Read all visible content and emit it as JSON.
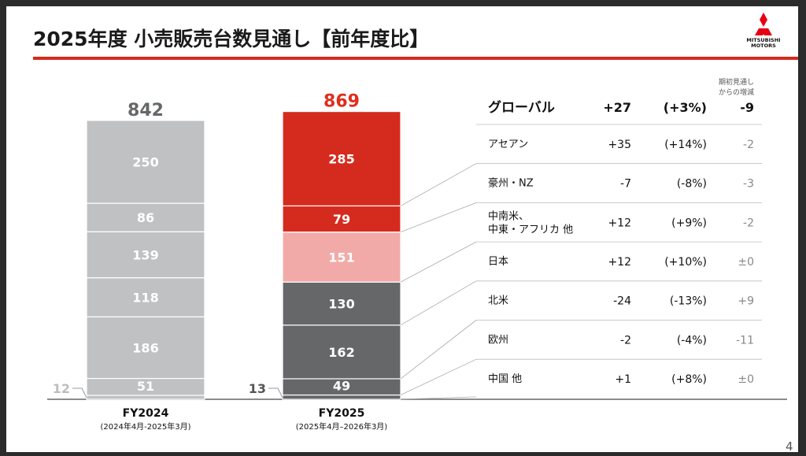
{
  "slide": {
    "title": "2025年度 小売販売台数見通し【前年度比】",
    "page_number": "4",
    "logo": {
      "line1": "MITSUBISHI",
      "line2": "MOTORS"
    }
  },
  "colors": {
    "accent": "#d52b1e",
    "fy2024_bar": "#c0c1c2",
    "fy2025_red": "#d52b1e",
    "fy2025_pink": "#f2aaa8",
    "fy2025_dark": "#666769",
    "fy2024_total": "#666769",
    "fy2025_total": "#e02d1c"
  },
  "chart_data": {
    "type": "bar",
    "stacked": true,
    "categories": [
      "FY2024",
      "FY2025"
    ],
    "category_subtitles": [
      "(2024年4月-2025年3月)",
      "(2025年4月–2026年3月)"
    ],
    "totals": [
      "842",
      "869"
    ],
    "segments_bottom_to_top": [
      {
        "name": "中国 他",
        "values": [
          12,
          13
        ],
        "labels": [
          "12",
          "13"
        ]
      },
      {
        "name": "欧州",
        "values": [
          51,
          49
        ],
        "labels": [
          "51",
          "49"
        ]
      },
      {
        "name": "北米",
        "values": [
          186,
          162
        ],
        "labels": [
          "186",
          "162"
        ]
      },
      {
        "name": "日本",
        "values": [
          118,
          130
        ],
        "labels": [
          "118",
          "130"
        ]
      },
      {
        "name": "中南米、中東・アフリカ 他",
        "values": [
          139,
          151
        ],
        "labels": [
          "139",
          "151"
        ]
      },
      {
        "name": "豪州・NZ",
        "values": [
          86,
          79
        ],
        "labels": [
          "86",
          "79"
        ]
      },
      {
        "name": "アセアン",
        "values": [
          250,
          285
        ],
        "labels": [
          "250",
          "285"
        ]
      }
    ]
  },
  "table": {
    "note_line1": "期初見通し",
    "note_line2": "からの増減",
    "global": {
      "label": "グローバル",
      "change": "+27",
      "pct": "(+3%)",
      "delta": "-9"
    },
    "rows": [
      {
        "label_line1": "アセアン",
        "label_line2": "",
        "change": "+35",
        "pct": "(+14%)",
        "delta": "-2"
      },
      {
        "label_line1": "豪州・NZ",
        "label_line2": "",
        "change": "-7",
        "pct": "(-8%)",
        "delta": "-3"
      },
      {
        "label_line1": "中南米、",
        "label_line2": "中東・アフリカ 他",
        "change": "+12",
        "pct": "(+9%)",
        "delta": "-2"
      },
      {
        "label_line1": "日本",
        "label_line2": "",
        "change": "+12",
        "pct": "(+10%)",
        "delta": "±0"
      },
      {
        "label_line1": "北米",
        "label_line2": "",
        "change": "-24",
        "pct": "(-13%)",
        "delta": "+9"
      },
      {
        "label_line1": "欧州",
        "label_line2": "",
        "change": "-2",
        "pct": "(-4%)",
        "delta": "-11"
      },
      {
        "label_line1": "中国 他",
        "label_line2": "",
        "change": "+1",
        "pct": "(+8%)",
        "delta": "±0"
      }
    ]
  }
}
